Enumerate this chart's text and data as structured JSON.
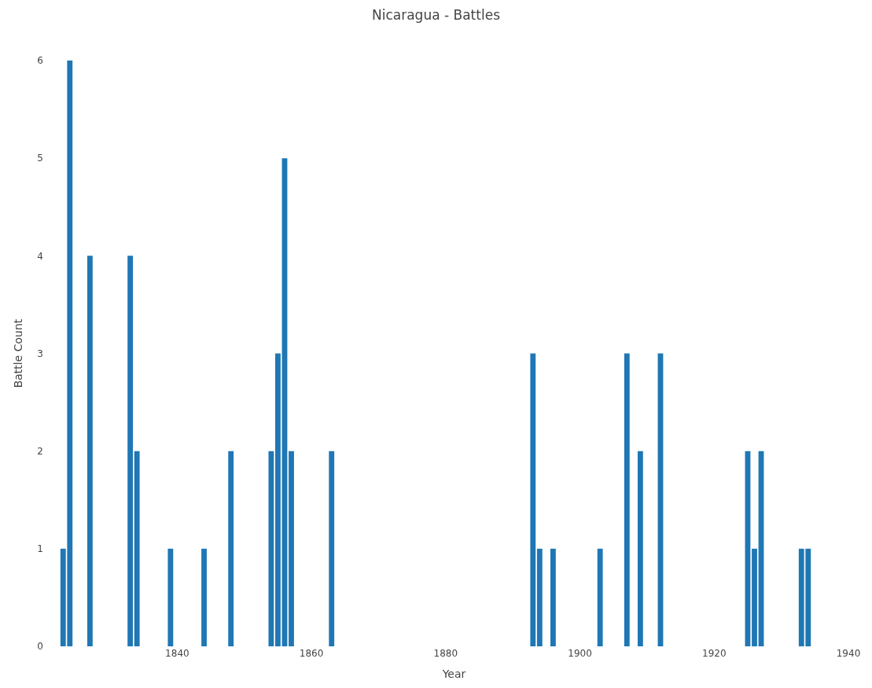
{
  "chart_data": {
    "type": "bar",
    "title": "Nicaragua - Battles",
    "xlabel": "Year",
    "ylabel": "Battle Count",
    "x": [
      1823,
      1824,
      1827,
      1833,
      1834,
      1839,
      1844,
      1848,
      1854,
      1855,
      1856,
      1857,
      1863,
      1893,
      1894,
      1896,
      1903,
      1907,
      1909,
      1912,
      1925,
      1926,
      1927,
      1933,
      1934
    ],
    "values": [
      1,
      6,
      4,
      4,
      2,
      1,
      1,
      2,
      2,
      3,
      5,
      2,
      2,
      3,
      1,
      1,
      1,
      3,
      2,
      3,
      2,
      1,
      2,
      1,
      1
    ],
    "color": "#1f77b4",
    "xlim": [
      1822.5,
      1940
    ],
    "xticks": [
      1840,
      1860,
      1880,
      1900,
      1920,
      1940
    ],
    "ylim": [
      0,
      6
    ],
    "yticks": [
      0,
      1,
      2,
      3,
      4,
      5,
      6
    ]
  }
}
